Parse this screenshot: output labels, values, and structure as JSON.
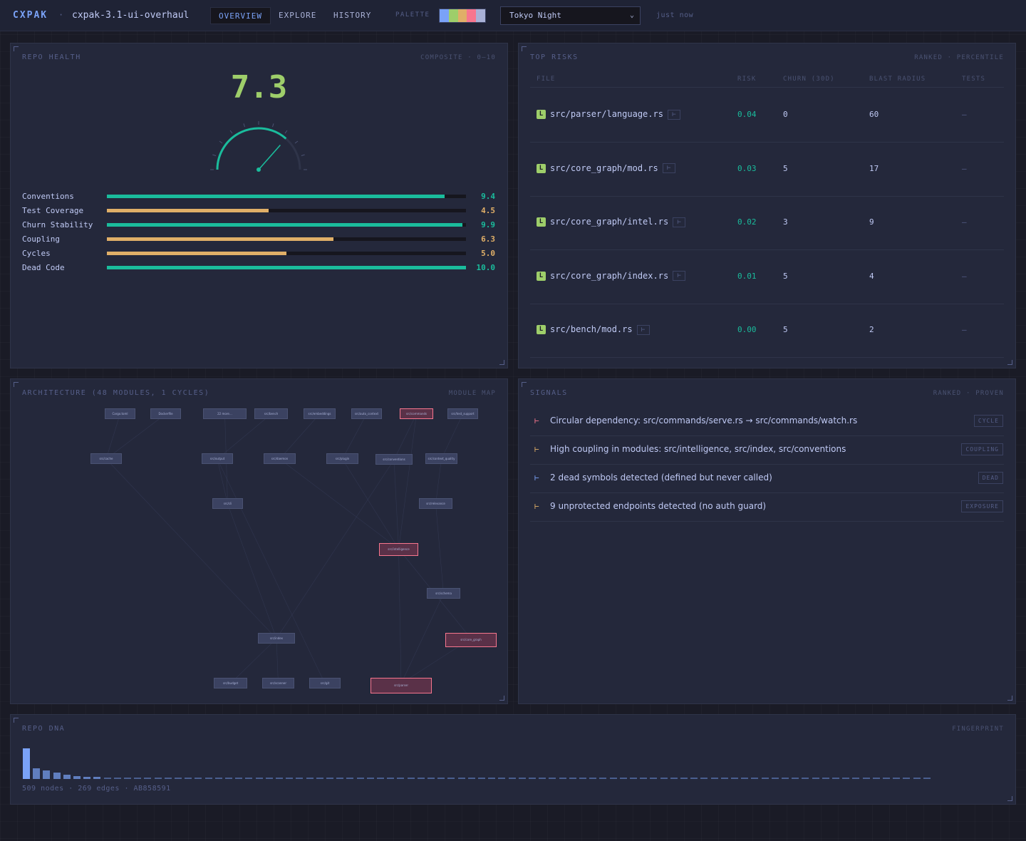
{
  "header": {
    "logo": "CXPAK",
    "separator": "·",
    "project": "cxpak-3.1-ui-overhaul",
    "tabs": [
      {
        "label": "OVERVIEW"
      },
      {
        "label": "EXPLORE"
      },
      {
        "label": "HISTORY"
      }
    ],
    "palette_label": "PALETTE",
    "palette_colors": [
      "#7aa2f7",
      "#9ece6a",
      "#e0af68",
      "#f7768e",
      "#a9b1d6"
    ],
    "theme": "Tokyo Night",
    "updated": "just now"
  },
  "health": {
    "title": "REPO HEALTH",
    "meta": "COMPOSITE · 0–10",
    "score": "7.3",
    "score_value": 7.3,
    "metrics": [
      {
        "label": "Conventions",
        "value": "9.4",
        "fraction": 0.94,
        "color": "#1abc9c"
      },
      {
        "label": "Test Coverage",
        "value": "4.5",
        "fraction": 0.45,
        "color": "#e0af68"
      },
      {
        "label": "Churn Stability",
        "value": "9.9",
        "fraction": 0.99,
        "color": "#1abc9c"
      },
      {
        "label": "Coupling",
        "value": "6.3",
        "fraction": 0.63,
        "color": "#e0af68"
      },
      {
        "label": "Cycles",
        "value": "5.0",
        "fraction": 0.5,
        "color": "#e0af68"
      },
      {
        "label": "Dead Code",
        "value": "10.0",
        "fraction": 1.0,
        "color": "#1abc9c"
      }
    ]
  },
  "risks": {
    "title": "TOP RISKS",
    "meta": "RANKED · PERCENTILE",
    "columns": [
      "FILE",
      "RISK",
      "CHURN (30D)",
      "BLAST RADIUS",
      "TESTS"
    ],
    "rows": [
      {
        "badge": "L",
        "file": "src/parser/language.rs",
        "risk": "0.04",
        "churn": "0",
        "blast": "60",
        "tests": "—"
      },
      {
        "badge": "L",
        "file": "src/core_graph/mod.rs",
        "risk": "0.03",
        "churn": "5",
        "blast": "17",
        "tests": "—"
      },
      {
        "badge": "L",
        "file": "src/core_graph/intel.rs",
        "risk": "0.02",
        "churn": "3",
        "blast": "9",
        "tests": "—"
      },
      {
        "badge": "L",
        "file": "src/core_graph/index.rs",
        "risk": "0.01",
        "churn": "5",
        "blast": "4",
        "tests": "—"
      },
      {
        "badge": "L",
        "file": "src/bench/mod.rs",
        "risk": "0.00",
        "churn": "5",
        "blast": "2",
        "tests": "—"
      }
    ]
  },
  "architecture": {
    "title": "ARCHITECTURE (48 MODULES, 1 CYCLES)",
    "meta": "MODULE MAP",
    "nodes": [
      {
        "label": "Cargo.toml",
        "cycle": false
      },
      {
        "label": "Dockerfile",
        "cycle": false
      },
      {
        "label": "22 more…",
        "cycle": false
      },
      {
        "label": "src/bench",
        "cycle": false
      },
      {
        "label": "src/embeddings",
        "cycle": false
      },
      {
        "label": "src/auto_context",
        "cycle": false
      },
      {
        "label": "src/commands",
        "cycle": true
      },
      {
        "label": "src/test_support",
        "cycle": false
      },
      {
        "label": "src/cache",
        "cycle": false
      },
      {
        "label": "src/output",
        "cycle": false
      },
      {
        "label": "src/daemon",
        "cycle": false
      },
      {
        "label": "src/plugin",
        "cycle": false
      },
      {
        "label": "src/conventions",
        "cycle": false
      },
      {
        "label": "src/context_quality",
        "cycle": false
      },
      {
        "label": "src/cli",
        "cycle": false
      },
      {
        "label": "src/relevance",
        "cycle": false
      },
      {
        "label": "src/intelligence",
        "cycle": true
      },
      {
        "label": "src/schema",
        "cycle": false
      },
      {
        "label": "src/index",
        "cycle": false
      },
      {
        "label": "src/core_graph",
        "cycle": true
      },
      {
        "label": "src/budget",
        "cycle": false
      },
      {
        "label": "src/scanner",
        "cycle": false
      },
      {
        "label": "src/git",
        "cycle": false
      },
      {
        "label": "src/parser",
        "cycle": true
      }
    ]
  },
  "signals": {
    "title": "SIGNALS",
    "meta": "RANKED · PROVEN",
    "items": [
      {
        "icon": "⊢",
        "text": "Circular dependency: src/commands/serve.rs → src/commands/watch.rs",
        "tag": "CYCLE",
        "color": "#f7768e"
      },
      {
        "icon": "⊢",
        "text": "High coupling in modules: src/intelligence, src/index, src/conventions",
        "tag": "COUPLING",
        "color": "#e0af68"
      },
      {
        "icon": "⊢",
        "text": "2 dead symbols detected (defined but never called)",
        "tag": "DEAD",
        "color": "#7aa2f7"
      },
      {
        "icon": "⊢",
        "text": "9 unprotected endpoints detected (no auth guard)",
        "tag": "EXPOSURE",
        "color": "#e0af68"
      }
    ]
  },
  "dna": {
    "title": "REPO DNA",
    "meta": "FINGERPRINT",
    "bars": [
      1.0,
      0.36,
      0.28,
      0.2,
      0.13,
      0.09,
      0.07,
      0.06
    ],
    "baseline_count": 90,
    "footer": "509 nodes · 269 edges · AB858591"
  }
}
